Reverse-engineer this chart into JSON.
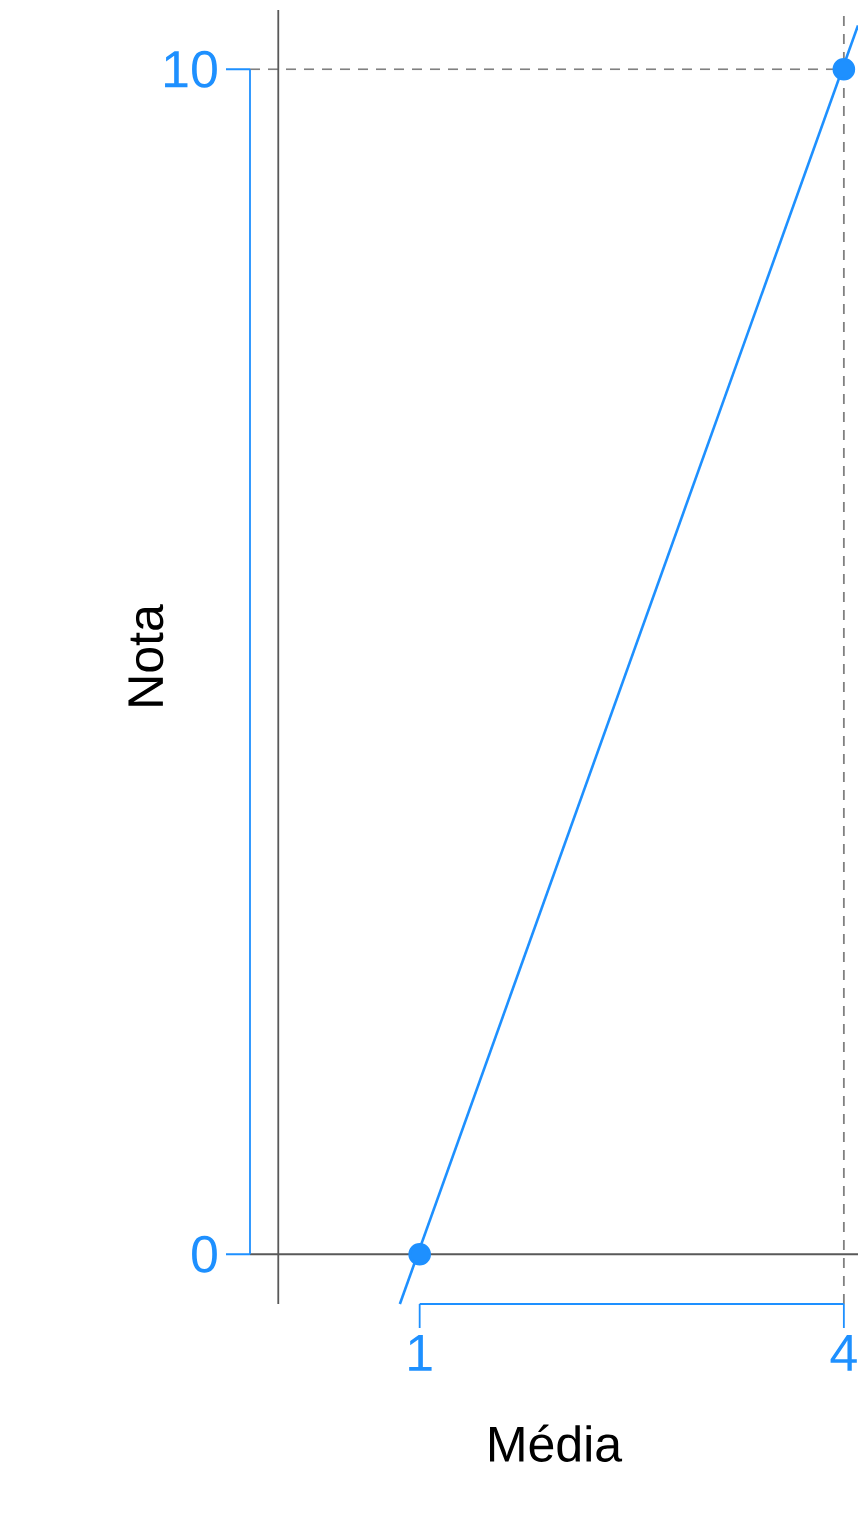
{
  "chart_data": {
    "type": "line",
    "xlabel": "Média",
    "ylabel": "Nota",
    "xlim": [
      -0.2,
      4.1
    ],
    "ylim": [
      -0.42,
      10.5
    ],
    "xticks": [
      1,
      4
    ],
    "yticks": [
      0,
      10
    ],
    "grid": false,
    "series": [
      {
        "color": "#1e90ff",
        "x": [
          0.86,
          4.1
        ],
        "values": [
          -0.42,
          10.37
        ],
        "marker": "none"
      },
      {
        "type": "scatter",
        "color": "#1e90ff",
        "x": [
          1,
          4
        ],
        "values": [
          0,
          10
        ],
        "marker": "circle"
      }
    ],
    "ref_lines": [
      {
        "axis": "y",
        "value": 10,
        "color": "#808080",
        "line_style": "dashed"
      },
      {
        "axis": "x",
        "value": 4,
        "color": "#808080",
        "line_style": "dashed"
      },
      {
        "axis": "x",
        "value": 0,
        "color": "#595959",
        "line_style": "solid"
      },
      {
        "axis": "y",
        "value": 0,
        "color": "#595959",
        "line_style": "solid"
      }
    ]
  }
}
